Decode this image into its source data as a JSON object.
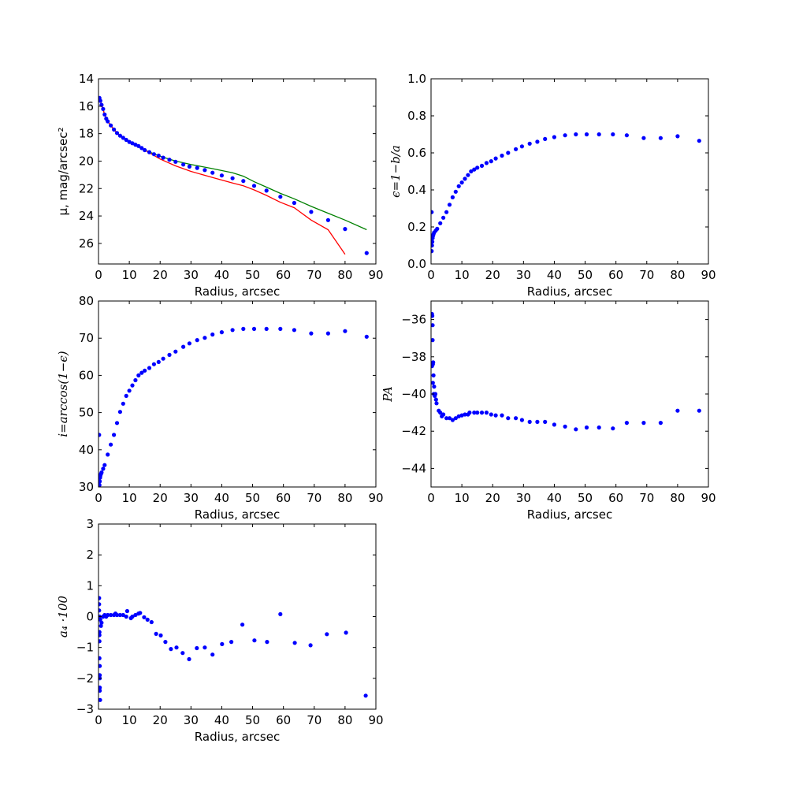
{
  "chart_data": [
    {
      "type": "scatter",
      "title": "",
      "xlabel": "Radius, arcsec",
      "ylabel": "μ, mag/arcsec²",
      "xlim": [
        0,
        90
      ],
      "ylim": [
        14,
        27.5
      ],
      "y_inverted": true,
      "xticks": [
        0,
        10,
        20,
        30,
        40,
        50,
        60,
        70,
        80,
        90
      ],
      "yticks": [
        14,
        16,
        18,
        20,
        22,
        24,
        26
      ],
      "ytick_labels": [
        "14",
        "16",
        "18",
        "20",
        "22",
        "24",
        "26"
      ],
      "grid": false,
      "points": {
        "x": [
          0.3,
          0.6,
          1,
          1.5,
          2,
          2.5,
          3,
          4,
          5,
          6,
          7,
          8,
          9,
          10,
          11,
          12,
          13,
          14,
          15,
          16.5,
          18,
          19.5,
          21,
          23,
          25,
          27.5,
          29.5,
          32,
          34.5,
          37,
          40,
          43.5,
          47,
          50.5,
          54.5,
          59,
          63.5,
          69,
          74.5,
          80,
          87
        ],
        "y": [
          15.4,
          15.6,
          15.9,
          16.2,
          16.6,
          16.9,
          17.1,
          17.4,
          17.7,
          17.95,
          18.15,
          18.3,
          18.45,
          18.6,
          18.7,
          18.8,
          18.9,
          19.05,
          19.2,
          19.35,
          19.5,
          19.6,
          19.75,
          19.9,
          20.05,
          20.25,
          20.4,
          20.5,
          20.65,
          20.85,
          21.05,
          21.25,
          21.45,
          21.8,
          22.15,
          22.6,
          23.05,
          23.7,
          24.3,
          24.95,
          26.7
        ]
      },
      "series": [
        {
          "name": "green",
          "color": "#008000",
          "x": [
            0.3,
            1,
            2,
            3,
            5,
            7,
            10,
            15,
            20,
            25,
            30,
            37,
            43.5,
            47,
            50.5,
            54.5,
            59,
            63.5,
            69,
            74.5,
            80,
            87
          ],
          "y": [
            15.4,
            15.9,
            16.6,
            17.1,
            17.7,
            18.15,
            18.6,
            19.2,
            19.65,
            20.0,
            20.25,
            20.55,
            20.85,
            21.1,
            21.5,
            21.9,
            22.35,
            22.75,
            23.3,
            23.8,
            24.3,
            25.0
          ]
        },
        {
          "name": "red",
          "color": "#ff0000",
          "x": [
            0.3,
            1,
            2,
            3,
            5,
            7,
            10,
            15,
            20,
            25,
            30,
            37,
            43.5,
            47,
            50.5,
            54.5,
            59,
            63.5,
            69,
            74.5,
            80
          ],
          "y": [
            15.4,
            15.9,
            16.6,
            17.1,
            17.7,
            18.15,
            18.6,
            19.2,
            19.85,
            20.35,
            20.75,
            21.2,
            21.6,
            21.8,
            22.1,
            22.5,
            23.0,
            23.4,
            24.3,
            25.0,
            26.8
          ]
        }
      ]
    },
    {
      "type": "scatter",
      "xlabel": "Radius, arcsec",
      "ylabel": "ϵ=1−b/a",
      "xlim": [
        0,
        90
      ],
      "ylim": [
        0,
        1
      ],
      "xticks": [
        0,
        10,
        20,
        30,
        40,
        50,
        60,
        70,
        80,
        90
      ],
      "yticks": [
        0,
        0.2,
        0.4,
        0.6,
        0.8,
        1.0
      ],
      "ytick_labels": [
        "0.0",
        "0.2",
        "0.4",
        "0.6",
        "0.8",
        "1.0"
      ],
      "grid": false,
      "points": {
        "x": [
          0.2,
          0.2,
          0.3,
          0.4,
          0.5,
          0.6,
          0.8,
          1,
          1.5,
          2,
          3,
          4,
          5,
          6,
          7,
          8,
          9,
          10,
          11,
          12,
          13,
          14,
          15,
          16.5,
          18,
          19.5,
          21,
          23,
          25,
          27.5,
          29.5,
          32,
          34.5,
          37,
          40,
          43.5,
          47,
          50.5,
          54.5,
          59,
          63.5,
          69,
          74.5,
          80,
          87
        ],
        "y": [
          0.07,
          0.28,
          0.1,
          0.12,
          0.14,
          0.15,
          0.16,
          0.17,
          0.18,
          0.19,
          0.22,
          0.25,
          0.28,
          0.32,
          0.36,
          0.39,
          0.42,
          0.44,
          0.46,
          0.48,
          0.5,
          0.51,
          0.52,
          0.53,
          0.545,
          0.555,
          0.57,
          0.585,
          0.6,
          0.62,
          0.635,
          0.65,
          0.66,
          0.675,
          0.685,
          0.695,
          0.7,
          0.7,
          0.7,
          0.7,
          0.695,
          0.68,
          0.68,
          0.69,
          0.665
        ]
      }
    },
    {
      "type": "scatter",
      "xlabel": "Radius, arcsec",
      "ylabel": "i=arccos(1−ϵ)",
      "xlim": [
        0,
        90
      ],
      "ylim": [
        30,
        80
      ],
      "xticks": [
        0,
        10,
        20,
        30,
        40,
        50,
        60,
        70,
        80,
        90
      ],
      "yticks": [
        30,
        40,
        50,
        60,
        70,
        80
      ],
      "ytick_labels": [
        "30",
        "40",
        "50",
        "60",
        "70",
        "80"
      ],
      "grid": false,
      "points": {
        "x": [
          0.2,
          0.3,
          0.4,
          0.5,
          0.6,
          0.8,
          1,
          1.5,
          2,
          3,
          4,
          5,
          6,
          7,
          8,
          9,
          10,
          11,
          12,
          13,
          14,
          15,
          16.5,
          18,
          19.5,
          21,
          23,
          25,
          27.5,
          29.5,
          32,
          34.5,
          37,
          40,
          43.5,
          47,
          50.5,
          54.5,
          59,
          63.5,
          69,
          74.5,
          80,
          87
        ],
        "y": [
          44.0,
          30.5,
          31.5,
          32.5,
          33.0,
          33.5,
          33.9,
          34.9,
          35.9,
          38.7,
          41.4,
          44.0,
          47.2,
          50.2,
          52.4,
          54.5,
          55.9,
          57.3,
          58.7,
          60.0,
          60.7,
          61.3,
          62.0,
          63.0,
          63.6,
          64.5,
          65.5,
          66.4,
          67.7,
          68.6,
          69.5,
          70.1,
          71.0,
          71.6,
          72.2,
          72.5,
          72.5,
          72.5,
          72.5,
          72.2,
          71.3,
          71.3,
          71.9,
          70.4
        ]
      }
    },
    {
      "type": "scatter",
      "xlabel": "Radius, arcsec",
      "ylabel": "PA",
      "xlim": [
        0,
        90
      ],
      "ylim": [
        -45,
        -35
      ],
      "xticks": [
        0,
        10,
        20,
        30,
        40,
        50,
        60,
        70,
        80,
        90
      ],
      "yticks": [
        -44,
        -42,
        -40,
        -38,
        -36
      ],
      "ytick_labels": [
        "−44",
        "−42",
        "−40",
        "−38",
        "−36"
      ],
      "grid": false,
      "points": {
        "x": [
          0.3,
          0.4,
          0.5,
          0.5,
          0.6,
          0.3,
          0.7,
          0.8,
          0.6,
          1,
          0.9,
          1.2,
          1.4,
          1.6,
          1.8,
          2.5,
          3,
          3.5,
          4,
          5,
          6,
          7,
          8,
          9,
          10,
          11,
          12,
          12.5,
          14,
          15,
          16.5,
          18,
          19.5,
          21,
          23,
          25,
          27.5,
          29.5,
          32,
          34.5,
          37,
          40,
          43.5,
          47,
          50.5,
          54.5,
          59,
          63.5,
          69,
          74.5,
          80,
          87
        ],
        "y": [
          -35.7,
          -35.8,
          -36.3,
          -37.1,
          -38.4,
          -38.5,
          -38.3,
          -39.0,
          -39.4,
          -39.6,
          -40.0,
          -40.1,
          -40.0,
          -40.3,
          -40.5,
          -40.9,
          -41.0,
          -41.2,
          -41.1,
          -41.3,
          -41.3,
          -41.4,
          -41.3,
          -41.2,
          -41.15,
          -41.1,
          -41.1,
          -41.0,
          -41.0,
          -41.0,
          -41.0,
          -41.0,
          -41.1,
          -41.15,
          -41.15,
          -41.3,
          -41.3,
          -41.4,
          -41.5,
          -41.5,
          -41.5,
          -41.65,
          -41.75,
          -41.9,
          -41.8,
          -41.8,
          -41.85,
          -41.55,
          -41.55,
          -41.55,
          -40.9,
          -40.9
        ]
      }
    },
    {
      "type": "scatter",
      "xlabel": "Radius, arcsec",
      "ylabel": "a₄ ·100",
      "xlim": [
        0,
        90
      ],
      "ylim": [
        -3,
        3
      ],
      "xticks": [
        0,
        10,
        20,
        30,
        40,
        50,
        60,
        70,
        80,
        90
      ],
      "yticks": [
        -3,
        -2,
        -1,
        0,
        1,
        2,
        3
      ],
      "ytick_labels": [
        "−3",
        "−2",
        "−1",
        "0",
        "1",
        "2",
        "3"
      ],
      "grid": false,
      "points": {
        "x": [
          0.2,
          0.2,
          0.2,
          0.3,
          0.3,
          0.3,
          0.3,
          0.3,
          0.4,
          0.4,
          0.4,
          0.4,
          0.4,
          0.5,
          0.6,
          0.8,
          1,
          1.5,
          2,
          2.5,
          3,
          4,
          5,
          5.5,
          6,
          7,
          8,
          9,
          9.3,
          10.5,
          11,
          12,
          13,
          13.5,
          14.8,
          15.9,
          17.2,
          18.7,
          20.2,
          21.7,
          23.5,
          25.3,
          27.3,
          29.4,
          31.9,
          34.5,
          37.0,
          40.1,
          43.1,
          46.7,
          50.6,
          54.7,
          59.0,
          63.7,
          68.8,
          74.1,
          80.3,
          86.7
        ],
        "y": [
          0.6,
          0.4,
          0.2,
          0.0,
          -0.5,
          -0.6,
          -0.8,
          -1.35,
          -1.6,
          -1.9,
          -2.0,
          -2.3,
          -2.4,
          -2.7,
          -0.1,
          -0.3,
          -0.2,
          0.0,
          0.05,
          0.0,
          0.05,
          0.05,
          0.05,
          0.1,
          0.05,
          0.05,
          0.05,
          0.0,
          0.18,
          -0.05,
          0.0,
          0.05,
          0.1,
          0.12,
          -0.02,
          -0.1,
          -0.18,
          -0.56,
          -0.61,
          -0.82,
          -1.05,
          -1.0,
          -1.18,
          -1.38,
          -1.02,
          -1.0,
          -1.23,
          -0.89,
          -0.82,
          -0.26,
          -0.77,
          -0.82,
          0.08,
          -0.85,
          -0.93,
          -0.57,
          -0.52,
          -2.56
        ]
      }
    }
  ],
  "colors": {
    "points": "#0000ff"
  }
}
